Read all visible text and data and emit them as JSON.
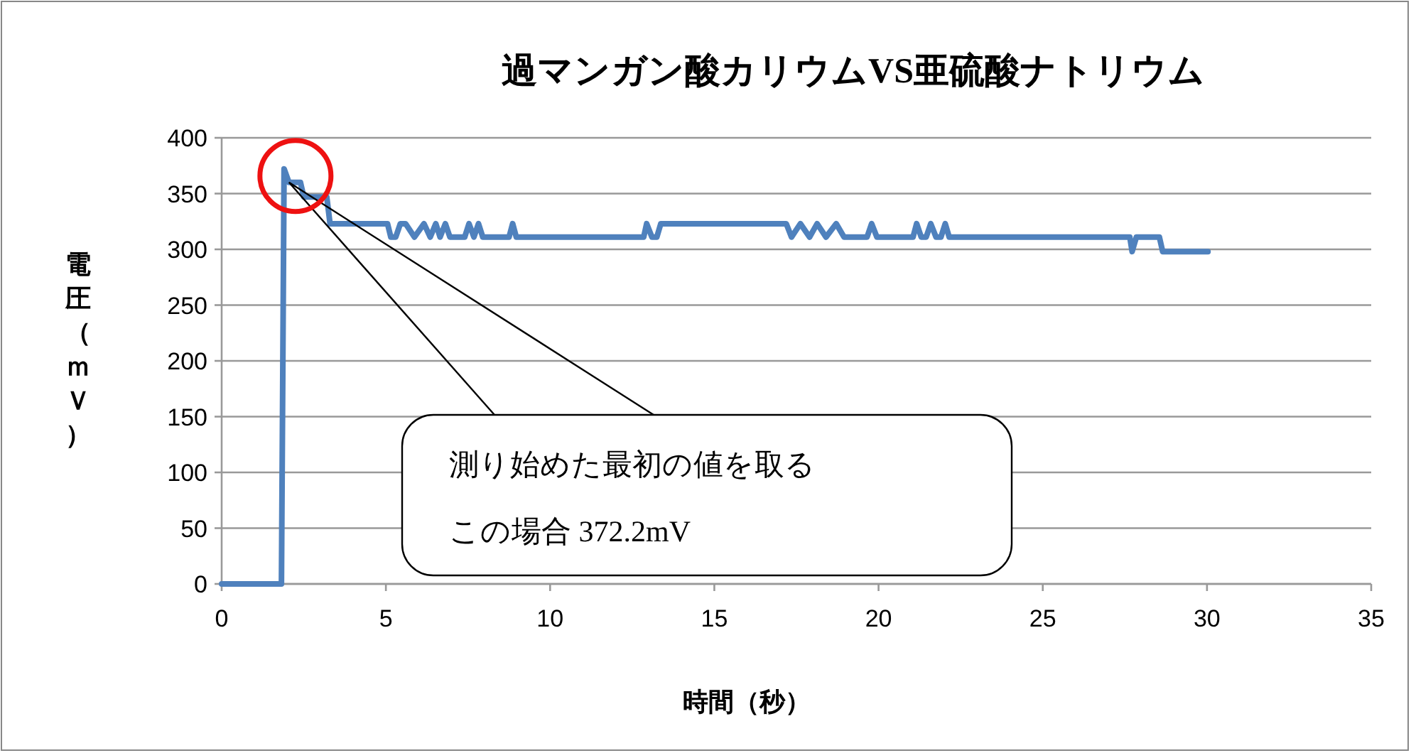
{
  "chart_data": {
    "type": "line",
    "title": "過マンガン酸カリウムVS亜硫酸ナトリウム",
    "xlabel": "時間（秒）",
    "ylabel": "電圧（ｍＶ）",
    "xlim": [
      0,
      35
    ],
    "xticks": [
      0,
      5,
      10,
      15,
      20,
      25,
      30,
      35
    ],
    "ylim": [
      0,
      400
    ],
    "yticks": [
      0,
      50,
      100,
      150,
      200,
      250,
      300,
      350,
      400
    ],
    "grid": "y",
    "marker": "none",
    "line_style": "solid",
    "annotations": [
      "測り始めた最初の値を取る",
      "この場合 372.2mV"
    ],
    "series": [
      {
        "color": "#4f81bd",
        "x": [
          0,
          1.82,
          1.9,
          2.05,
          2.4,
          2.5,
          3.2,
          3.3,
          5.05,
          5.15,
          5.3,
          5.44,
          5.6,
          5.87,
          6.16,
          6.35,
          6.52,
          6.65,
          6.81,
          6.95,
          7.4,
          7.53,
          7.68,
          7.82,
          7.95,
          8.75,
          8.86,
          8.97,
          12.85,
          12.94,
          13.1,
          13.25,
          13.37,
          13.59,
          17.19,
          17.35,
          17.62,
          17.9,
          18.13,
          18.4,
          18.71,
          18.95,
          19.65,
          19.79,
          19.95,
          21.05,
          21.16,
          21.3,
          21.45,
          21.59,
          21.75,
          21.9,
          22.03,
          22.15,
          27.65,
          27.72,
          27.85,
          28.55,
          28.65,
          30.03
        ],
        "values": [
          0,
          0,
          372.2,
          360,
          360,
          347,
          347,
          323,
          323,
          311,
          311,
          323,
          323,
          311,
          323,
          311,
          323,
          311,
          323,
          311,
          311,
          323,
          311,
          323,
          311,
          311,
          323,
          311,
          311,
          323,
          311,
          311,
          323,
          323,
          323,
          311,
          323,
          311,
          323,
          311,
          323,
          311,
          311,
          323,
          311,
          311,
          323,
          311,
          311,
          323,
          311,
          311,
          323,
          311,
          311,
          298,
          311,
          311,
          298,
          298
        ]
      }
    ]
  }
}
